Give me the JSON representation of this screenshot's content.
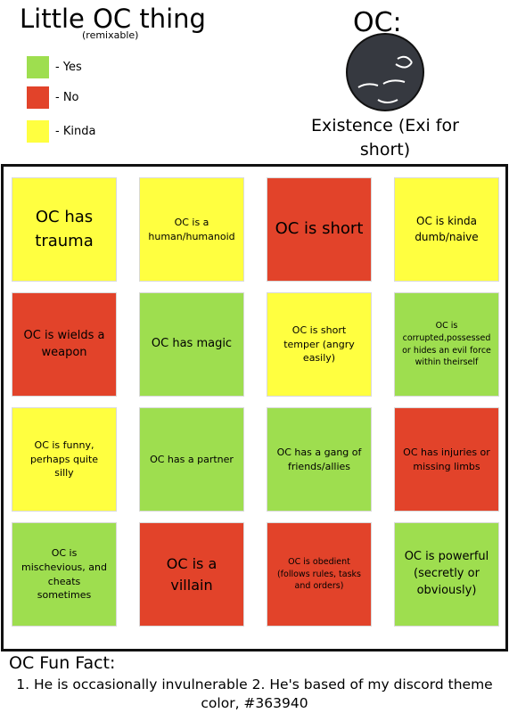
{
  "header": {
    "title": "Little OC thing",
    "subtitle": "(remixable)"
  },
  "legend": [
    {
      "label": "- Yes",
      "color": "#9ede4f"
    },
    {
      "label": "- No",
      "color": "#e2432a"
    },
    {
      "label": "- Kinda",
      "color": "#ffff40"
    }
  ],
  "oc": {
    "label": "OC:",
    "name": "Existence (Exi for short)",
    "color": "#363940"
  },
  "grid": {
    "cells": [
      {
        "text": "OC has trauma",
        "color": "#ffff40"
      },
      {
        "text": "OC is a human/humanoid",
        "color": "#ffff40"
      },
      {
        "text": "OC is short",
        "color": "#e2432a"
      },
      {
        "text": "OC is kinda dumb/naive",
        "color": "#ffff40"
      },
      {
        "text": "OC is wields a weapon",
        "color": "#e2432a"
      },
      {
        "text": "OC has magic",
        "color": "#9ede4f"
      },
      {
        "text": "OC is short temper (angry easily)",
        "color": "#ffff40"
      },
      {
        "text": "OC is corrupted,possessed or hides an evil force within theirself",
        "color": "#9ede4f"
      },
      {
        "text": "OC is funny, perhaps quite silly",
        "color": "#ffff40"
      },
      {
        "text": "OC has a partner",
        "color": "#9ede4f"
      },
      {
        "text": "OC has a gang of friends/allies",
        "color": "#9ede4f"
      },
      {
        "text": "OC has injuries or missing limbs",
        "color": "#e2432a"
      },
      {
        "text": "OC is mischevious, and cheats sometimes",
        "color": "#9ede4f"
      },
      {
        "text": "OC is a villain",
        "color": "#e2432a"
      },
      {
        "text": "OC is obedient (follows rules, tasks and orders)",
        "color": "#e2432a"
      },
      {
        "text": "OC is powerful (secretly or obviously)",
        "color": "#9ede4f"
      }
    ]
  },
  "fun_fact": {
    "title": "OC Fun Fact:",
    "text": "1. He is occasionally invulnerable 2. He's based of my discord theme color,  #363940"
  }
}
